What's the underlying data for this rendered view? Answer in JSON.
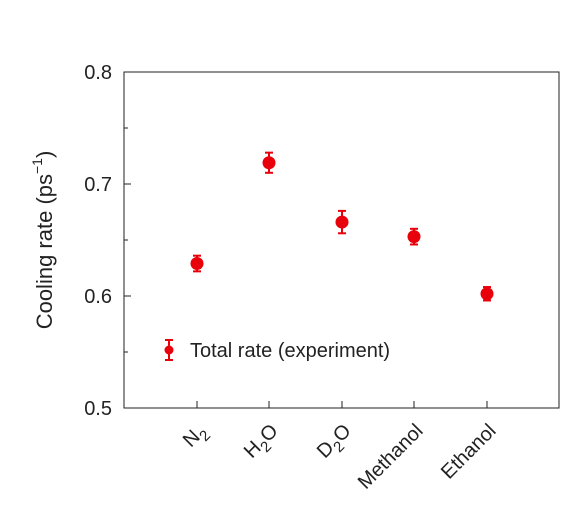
{
  "chart_data": {
    "type": "scatter",
    "categories": [
      "N2",
      "H2O",
      "D2O",
      "Methanol",
      "Ethanol"
    ],
    "category_labels": [
      {
        "base": "N",
        "sub": "2",
        "tail": ""
      },
      {
        "base": "H",
        "sub": "2",
        "tail": "O"
      },
      {
        "base": "D",
        "sub": "2",
        "tail": "O"
      },
      {
        "base": "Methanol",
        "sub": "",
        "tail": ""
      },
      {
        "base": "Ethanol",
        "sub": "",
        "tail": ""
      }
    ],
    "series": [
      {
        "name": "Total rate (experiment)",
        "color": "#e8000b",
        "values": [
          0.629,
          0.719,
          0.666,
          0.653,
          0.602
        ],
        "errors": [
          0.007,
          0.009,
          0.01,
          0.007,
          0.006
        ]
      }
    ],
    "ylabel": {
      "base": "Cooling rate (ps",
      "sup": "−1",
      "tail": ")"
    },
    "ylim": [
      0.5,
      0.8
    ],
    "yticks": [
      0.5,
      0.6,
      0.7,
      0.8
    ],
    "ytick_labels": [
      "0.5",
      "0.6",
      "0.7",
      "0.8"
    ],
    "yminor": [
      0.55,
      0.65,
      0.75
    ],
    "grid": false,
    "legend_position": "lower-left"
  }
}
